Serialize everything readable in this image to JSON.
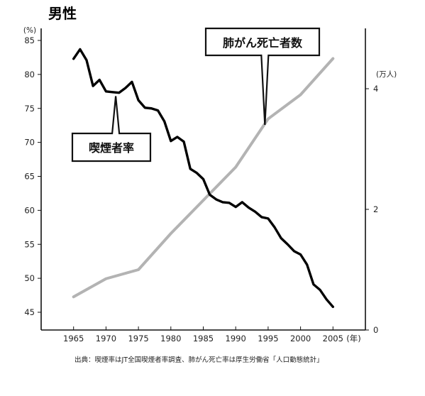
{
  "chart_data": {
    "type": "line",
    "title": "男性",
    "y_left": {
      "unit_label": "(%)",
      "range": [
        45,
        85
      ],
      "ticks": [
        45,
        50,
        55,
        60,
        65,
        70,
        75,
        80,
        85
      ]
    },
    "y_right": {
      "unit_label": "(万人)",
      "range": [
        0,
        5
      ],
      "ticks": [
        0,
        2,
        4
      ]
    },
    "x_axis": {
      "unit_label": "(年)",
      "range": [
        1960,
        2010
      ],
      "ticks": [
        1965,
        1970,
        1975,
        1980,
        1985,
        1990,
        1995,
        2000,
        2005
      ]
    },
    "grid": false,
    "series": [
      {
        "name": "喫煙者率",
        "axis": "left",
        "color": "#000000",
        "points": [
          [
            1965,
            82.3
          ],
          [
            1966,
            83.7
          ],
          [
            1967,
            82.1
          ],
          [
            1968,
            78.3
          ],
          [
            1969,
            79.2
          ],
          [
            1970,
            77.5
          ],
          [
            1971,
            77.4
          ],
          [
            1972,
            77.3
          ],
          [
            1973,
            78.0
          ],
          [
            1974,
            78.9
          ],
          [
            1975,
            76.2
          ],
          [
            1976,
            75.1
          ],
          [
            1977,
            75.0
          ],
          [
            1978,
            74.7
          ],
          [
            1979,
            73.1
          ],
          [
            1980,
            70.2
          ],
          [
            1981,
            70.8
          ],
          [
            1982,
            70.1
          ],
          [
            1983,
            66.1
          ],
          [
            1984,
            65.5
          ],
          [
            1985,
            64.6
          ],
          [
            1986,
            62.3
          ],
          [
            1987,
            61.6
          ],
          [
            1988,
            61.2
          ],
          [
            1989,
            61.1
          ],
          [
            1990,
            60.5
          ],
          [
            1991,
            61.2
          ],
          [
            1992,
            60.4
          ],
          [
            1993,
            59.8
          ],
          [
            1994,
            59.0
          ],
          [
            1995,
            58.8
          ],
          [
            1996,
            57.5
          ],
          [
            1997,
            55.9
          ],
          [
            1998,
            55.0
          ],
          [
            1999,
            54.0
          ],
          [
            2000,
            53.5
          ],
          [
            2001,
            52.0
          ],
          [
            2002,
            49.1
          ],
          [
            2003,
            48.3
          ],
          [
            2004,
            46.9
          ],
          [
            2005,
            45.8
          ]
        ]
      },
      {
        "name": "肺がん死亡者数",
        "axis": "right",
        "color": "#b3b3b3",
        "points": [
          [
            1965,
            0.55
          ],
          [
            1970,
            0.85
          ],
          [
            1975,
            1.0
          ],
          [
            1980,
            1.6
          ],
          [
            1985,
            2.15
          ],
          [
            1990,
            2.7
          ],
          [
            1995,
            3.5
          ],
          [
            2000,
            3.9
          ],
          [
            2005,
            4.5
          ]
        ]
      }
    ]
  },
  "source": "出典：喫煙率はJT全国喫煙者率調査、肺がん死亡率は厚生労働省「人口動態統計」"
}
